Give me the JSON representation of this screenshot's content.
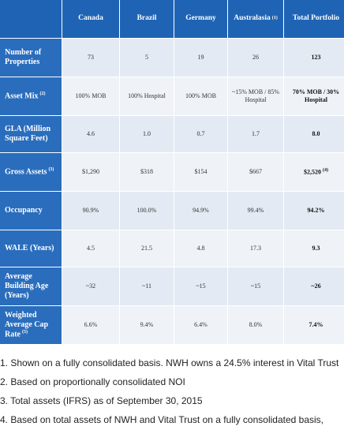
{
  "table": {
    "columns": [
      {
        "label": "Canada"
      },
      {
        "label": "Brazil"
      },
      {
        "label": "Germany"
      },
      {
        "label": "Australasia",
        "note": "(1)"
      },
      {
        "label": "Total Portfolio"
      }
    ],
    "rows": [
      {
        "label": "Number of Properties",
        "cells": [
          "73",
          "5",
          "19",
          "26",
          "123"
        ]
      },
      {
        "label": "Asset Mix",
        "note": "(2)",
        "cells": [
          "100% MOB",
          "100% Hospital",
          "100% MOB",
          "~15% MOB / 85% Hospital",
          "70% MOB / 30% Hospital"
        ]
      },
      {
        "label": "GLA (Million Square Feet)",
        "cells": [
          "4.6",
          "1.0",
          "0.7",
          "1.7",
          "8.0"
        ]
      },
      {
        "label": "Gross Assets",
        "note": "(3)",
        "cells": [
          "$1,290",
          "$318",
          "$154",
          "$667",
          "$2,520"
        ],
        "total_note": "(4)"
      },
      {
        "label": "Occupancy",
        "cells": [
          "90.9%",
          "100.0%",
          "94.9%",
          "99.4%",
          "94.2%"
        ]
      },
      {
        "label": "WALE (Years)",
        "cells": [
          "4.5",
          "21.5",
          "4.8",
          "17.3",
          "9.3"
        ]
      },
      {
        "label": "Average Building Age (Years)",
        "cells": [
          "~32",
          "~11",
          "~15",
          "~15",
          "~26"
        ]
      },
      {
        "label": "Weighted Average Cap Rate",
        "note": "(5)",
        "cells": [
          "6.6%",
          "9.4%",
          "6.4%",
          "8.0%",
          "7.4%"
        ]
      }
    ]
  },
  "footnotes": [
    "1. Shown on a fully consolidated basis. NWH owns a 24.5% interest in Vital Trust",
    "2. Based on proportionally consolidated NOI",
    "3. Total assets (IFRS) as of September 30, 2015",
    "4. Based on total assets of NWH and Vital Trust on a fully consolidated basis,"
  ]
}
